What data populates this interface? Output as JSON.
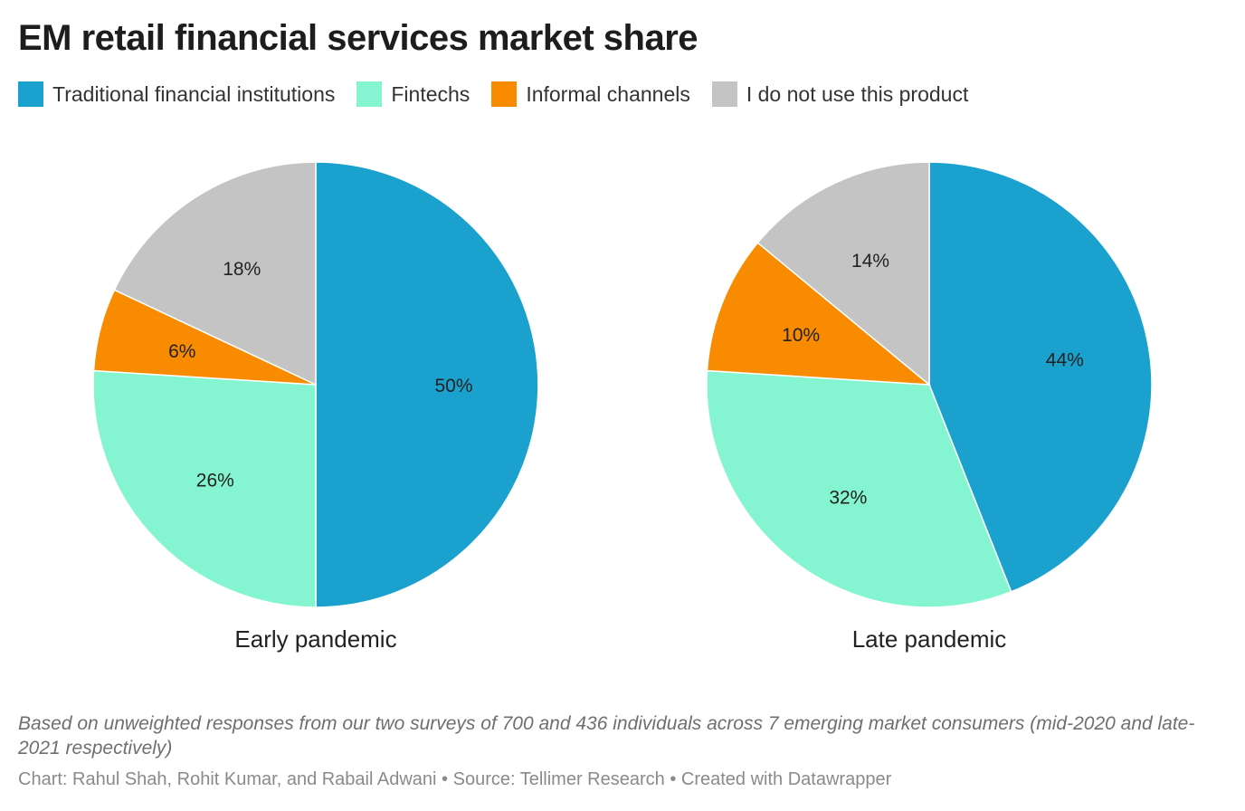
{
  "title": "EM retail financial services market share",
  "legend": [
    {
      "label": "Traditional financial institutions",
      "color": "#1aa1ce"
    },
    {
      "label": "Fintechs",
      "color": "#84f5d0"
    },
    {
      "label": "Informal channels",
      "color": "#f98b00"
    },
    {
      "label": "I do not use this product",
      "color": "#c4c4c4"
    }
  ],
  "chart_data": [
    {
      "type": "pie",
      "title": "Early pandemic",
      "categories": [
        "Traditional financial institutions",
        "Fintechs",
        "Informal channels",
        "I do not use this product"
      ],
      "values": [
        50,
        26,
        6,
        18
      ],
      "labels": [
        "50%",
        "26%",
        "6%",
        "18%"
      ]
    },
    {
      "type": "pie",
      "title": "Late pandemic",
      "categories": [
        "Traditional financial institutions",
        "Fintechs",
        "Informal channels",
        "I do not use this product"
      ],
      "values": [
        44,
        32,
        10,
        14
      ],
      "labels": [
        "44%",
        "32%",
        "10%",
        "14%"
      ]
    }
  ],
  "notes": "Based on unweighted responses from our two surveys of 700 and 436 individuals across 7 emerging market consumers (mid-2020 and late-2021 respectively)",
  "byline": "Chart: Rahul Shah, Rohit Kumar, and Rabail Adwani • Source: Tellimer Research • Created with Datawrapper"
}
